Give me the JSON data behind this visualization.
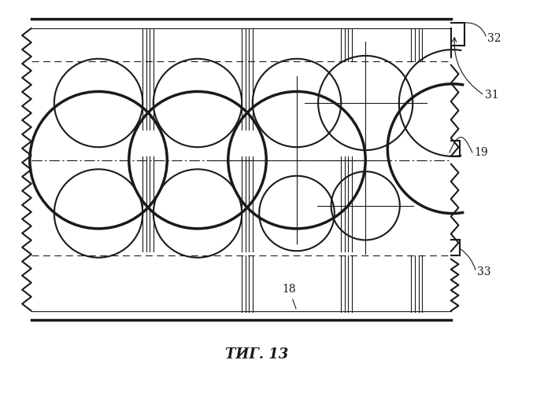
{
  "fig_width": 6.91,
  "fig_height": 5.0,
  "bg_color": "#ffffff",
  "line_color": "#1a1a1a",
  "title": "ΤИГ. 13"
}
